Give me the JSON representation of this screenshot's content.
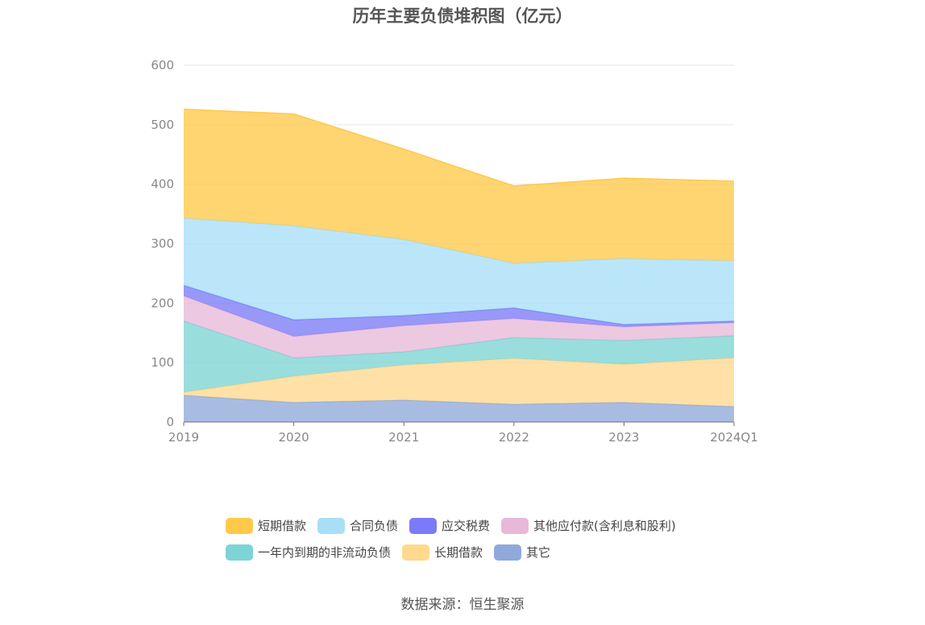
{
  "chart_data": {
    "type": "area",
    "stacked": true,
    "title": "历年主要负债堆积图（亿元）",
    "categories": [
      "2019",
      "2020",
      "2021",
      "2022",
      "2023",
      "2024Q1"
    ],
    "ylim": [
      0,
      600
    ],
    "yticks": [
      "0",
      "100",
      "200",
      "300",
      "400",
      "500",
      "600"
    ],
    "grid": true,
    "legend_position": "bottom",
    "series": [
      {
        "name": "其它",
        "color": "#8FA9DA",
        "values": [
          45,
          33,
          37,
          30,
          33,
          26
        ]
      },
      {
        "name": "长期借款",
        "color": "#FFD98E",
        "values": [
          5,
          44,
          59,
          77,
          64,
          82
        ]
      },
      {
        "name": "一年内到期的非流动负债",
        "color": "#7ED3D4",
        "values": [
          120,
          31,
          22,
          35,
          40,
          37
        ]
      },
      {
        "name": "其他应付款(含利息和股利)",
        "color": "#E8B8D8",
        "values": [
          42,
          36,
          44,
          32,
          23,
          22
        ]
      },
      {
        "name": "应交税费",
        "color": "#7B7BF7",
        "values": [
          18,
          28,
          17,
          18,
          4,
          3
        ]
      },
      {
        "name": "合同负债",
        "color": "#A8DFF7",
        "values": [
          113,
          158,
          128,
          75,
          111,
          101
        ]
      },
      {
        "name": "短期借款",
        "color": "#FFC94A",
        "values": [
          183,
          188,
          152,
          130,
          135,
          134
        ]
      }
    ]
  },
  "legend": {
    "rows": [
      [
        {
          "label": "短期借款",
          "color": "#FFC94A"
        },
        {
          "label": "合同负债",
          "color": "#A8DFF7"
        },
        {
          "label": "应交税费",
          "color": "#7B7BF7"
        },
        {
          "label": "其他应付款(含利息和股利)",
          "color": "#E8B8D8"
        }
      ],
      [
        {
          "label": "一年内到期的非流动负债",
          "color": "#7ED3D4"
        },
        {
          "label": "长期借款",
          "color": "#FFD98E"
        },
        {
          "label": "其它",
          "color": "#8FA9DA"
        }
      ]
    ]
  },
  "source_note": "数据来源：恒生聚源"
}
